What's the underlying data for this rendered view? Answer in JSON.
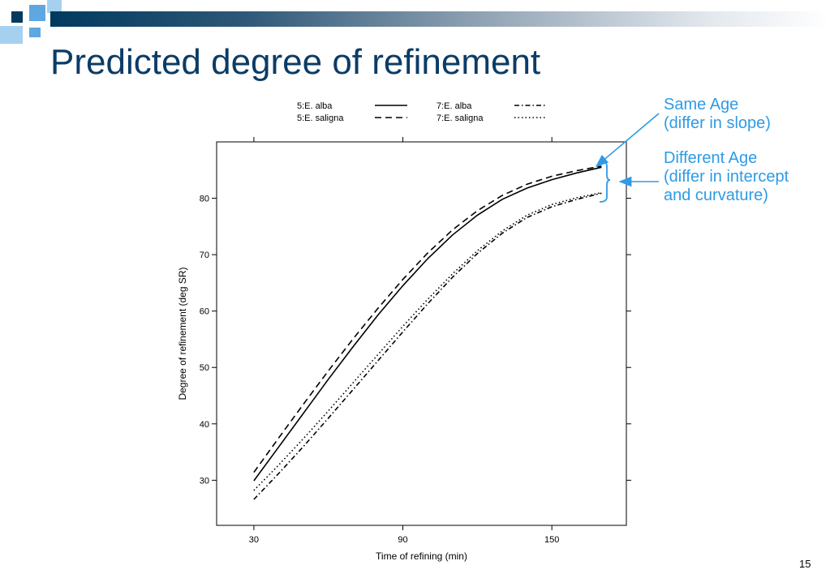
{
  "slide": {
    "title": "Predicted degree of refinement",
    "page_number": "15",
    "colors": {
      "title": "#0b3c66",
      "annotation": "#2e9be6",
      "banner": "#003a5e"
    }
  },
  "annotations": {
    "same_age": [
      "Same Age",
      "(differ in slope)"
    ],
    "different_age": [
      "Different Age",
      "(differ in intercept",
      "and curvature)"
    ]
  },
  "chart_data": {
    "type": "line",
    "xlabel": "Time of refining (min)",
    "ylabel": "Degree of refinement (deg SR)",
    "xlim": [
      15,
      180
    ],
    "ylim": [
      22,
      90
    ],
    "xticks": [
      30,
      90,
      150
    ],
    "yticks": [
      30,
      40,
      50,
      60,
      70,
      80
    ],
    "grid": false,
    "legend_position": "top",
    "x": [
      30,
      40,
      50,
      60,
      70,
      80,
      90,
      100,
      110,
      120,
      130,
      140,
      150,
      160,
      170
    ],
    "series": [
      {
        "name": "5:E. alba",
        "style": "solid",
        "values": [
          29.9,
          35.9,
          41.9,
          47.9,
          53.7,
          59.3,
          64.5,
          69.3,
          73.5,
          77.0,
          79.8,
          81.8,
          83.3,
          84.5,
          85.5
        ]
      },
      {
        "name": "5:E. saligna",
        "style": "dashed",
        "values": [
          31.4,
          37.5,
          43.5,
          49.4,
          55.1,
          60.5,
          65.6,
          70.3,
          74.4,
          77.8,
          80.5,
          82.5,
          83.9,
          84.9,
          85.7
        ]
      },
      {
        "name": "7:E. alba",
        "style": "dotdash",
        "values": [
          26.6,
          31.2,
          36.0,
          41.0,
          46.1,
          51.2,
          56.3,
          61.3,
          66.0,
          70.2,
          73.8,
          76.6,
          78.5,
          79.8,
          80.9
        ]
      },
      {
        "name": "7:E. saligna",
        "style": "dotted",
        "values": [
          28.2,
          32.7,
          37.4,
          42.3,
          47.3,
          52.3,
          57.3,
          62.1,
          66.6,
          70.7,
          74.2,
          77.0,
          78.9,
          80.1,
          81.0
        ]
      }
    ]
  }
}
